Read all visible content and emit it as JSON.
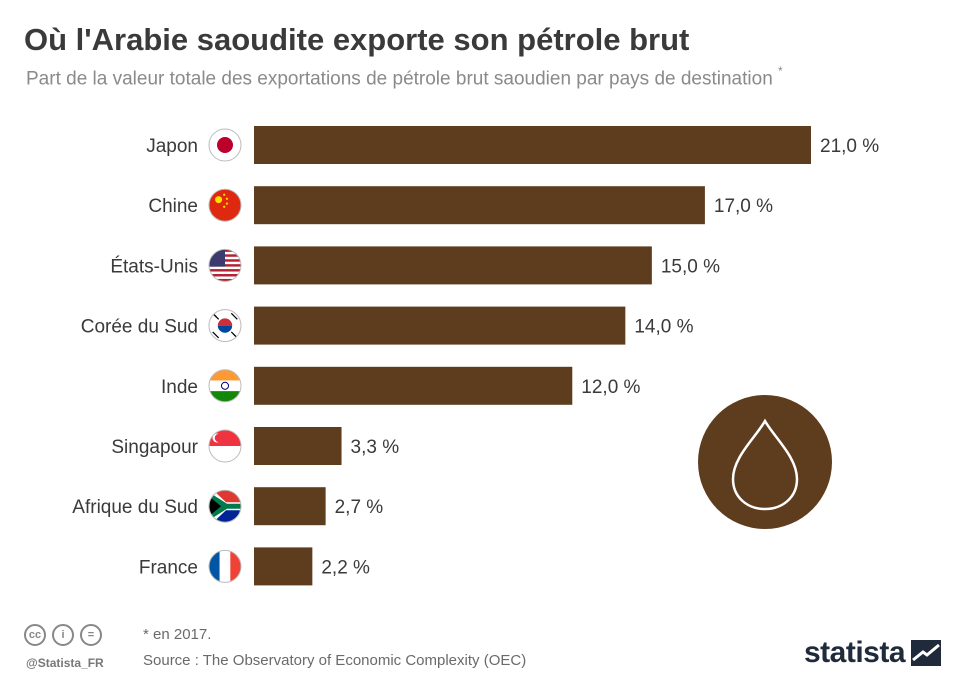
{
  "title": "Où l'Arabie saoudite exporte son pétrole brut",
  "subtitle": "Part de la valeur totale des exportations de pétrole brut saoudien par pays de destination",
  "subtitle_mark": "*",
  "footer": {
    "note": "* en 2017.",
    "source": "Source : The Observatory of Economic Complexity (OEC)",
    "handle": "@Statista_FR",
    "logo": "statista",
    "license_icons": [
      "cc",
      "by",
      "nd"
    ]
  },
  "colors": {
    "bar": "#5e3c1e",
    "text": "#3a3a3a"
  },
  "drop_icon": "oil-drop-icon",
  "chart_data": {
    "type": "bar",
    "orientation": "horizontal",
    "categories": [
      "Japon",
      "Chine",
      "États-Unis",
      "Corée du Sud",
      "Inde",
      "Singapour",
      "Afrique du Sud",
      "France"
    ],
    "flags": [
      "japan",
      "china",
      "usa",
      "south-korea",
      "india",
      "singapore",
      "south-africa",
      "france"
    ],
    "values": [
      21.0,
      17.0,
      15.0,
      14.0,
      12.0,
      3.3,
      2.7,
      2.2
    ],
    "value_labels": [
      "21,0 %",
      "17,0 %",
      "15,0 %",
      "14,0 %",
      "12,0 %",
      "3,3 %",
      "2,7 %",
      "2,2 %"
    ],
    "xlim": [
      0,
      21
    ],
    "grid": false,
    "legend": "none"
  }
}
